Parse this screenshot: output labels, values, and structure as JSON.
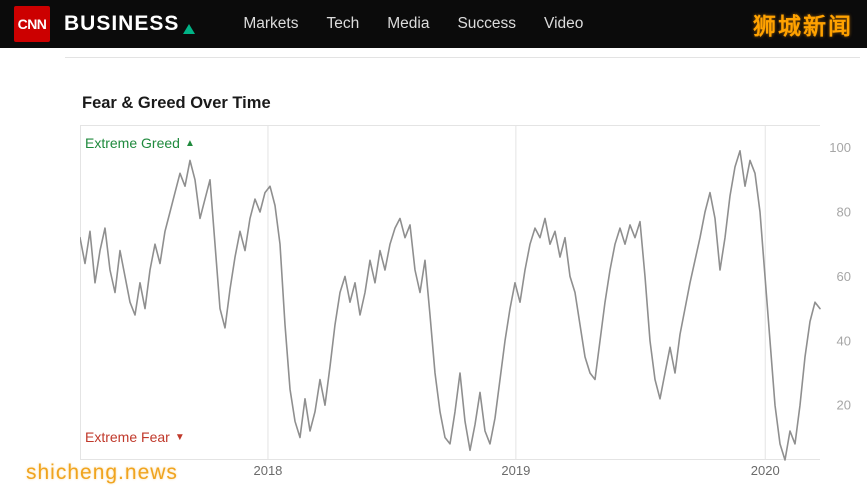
{
  "header": {
    "logo_text": "CNN",
    "brand": "BUSINESS",
    "nav": [
      "Markets",
      "Tech",
      "Media",
      "Success",
      "Video"
    ],
    "watermark": "狮城新闻"
  },
  "chart": {
    "title": "Fear & Greed Over Time",
    "greed_label": "Extreme Greed",
    "greed_arrow": "▲",
    "fear_label": "Extreme Fear",
    "fear_arrow": "▼"
  },
  "bottom_watermark": "shicheng.news",
  "colors": {
    "header_bg": "#0b0b0b",
    "cnn_red": "#cc0000",
    "brand_triangle_green": "#00b386",
    "greed_green": "#1f8a3d",
    "fear_red": "#c0392b",
    "watermark_orange": "#ffa200"
  },
  "chart_data": {
    "type": "line",
    "title": "Fear & Greed Over Time",
    "xlabel": "",
    "ylabel": "",
    "y_ticks": [
      20,
      40,
      60,
      80,
      100
    ],
    "ylim": [
      3,
      107
    ],
    "x_ticks": [
      {
        "label": "2018",
        "pos": 0.254
      },
      {
        "label": "2019",
        "pos": 0.589
      },
      {
        "label": "2020",
        "pos": 0.926
      }
    ],
    "grid": "vertical-year-lines-only",
    "legend": "none",
    "annotations": {
      "top_left": "Extreme Greed ▲",
      "bottom_left": "Extreme Fear ▼"
    },
    "line_color": "#8f8f8f",
    "grid_color": "#e4e4e4",
    "series": [
      {
        "name": "Fear & Greed Index",
        "sampling": "uniform over displayed time span (~mid-2017 to early 2020)",
        "values": [
          72,
          64,
          74,
          58,
          68,
          75,
          62,
          55,
          68,
          60,
          52,
          48,
          58,
          50,
          62,
          70,
          64,
          74,
          80,
          86,
          92,
          88,
          96,
          90,
          78,
          84,
          90,
          70,
          50,
          44,
          56,
          66,
          74,
          68,
          78,
          84,
          80,
          86,
          88,
          82,
          70,
          45,
          25,
          15,
          10,
          22,
          12,
          18,
          28,
          20,
          32,
          45,
          55,
          60,
          52,
          58,
          48,
          55,
          65,
          58,
          68,
          62,
          70,
          75,
          78,
          72,
          76,
          62,
          55,
          65,
          48,
          30,
          18,
          10,
          8,
          18,
          30,
          15,
          6,
          14,
          24,
          12,
          8,
          16,
          28,
          40,
          50,
          58,
          52,
          62,
          70,
          75,
          72,
          78,
          70,
          74,
          66,
          72,
          60,
          55,
          45,
          35,
          30,
          28,
          40,
          52,
          62,
          70,
          75,
          70,
          76,
          72,
          77,
          60,
          40,
          28,
          22,
          30,
          38,
          30,
          42,
          50,
          58,
          65,
          72,
          80,
          86,
          78,
          62,
          72,
          85,
          94,
          99,
          88,
          96,
          92,
          80,
          60,
          40,
          20,
          8,
          3,
          12,
          8,
          20,
          35,
          46,
          52,
          50
        ]
      }
    ]
  }
}
